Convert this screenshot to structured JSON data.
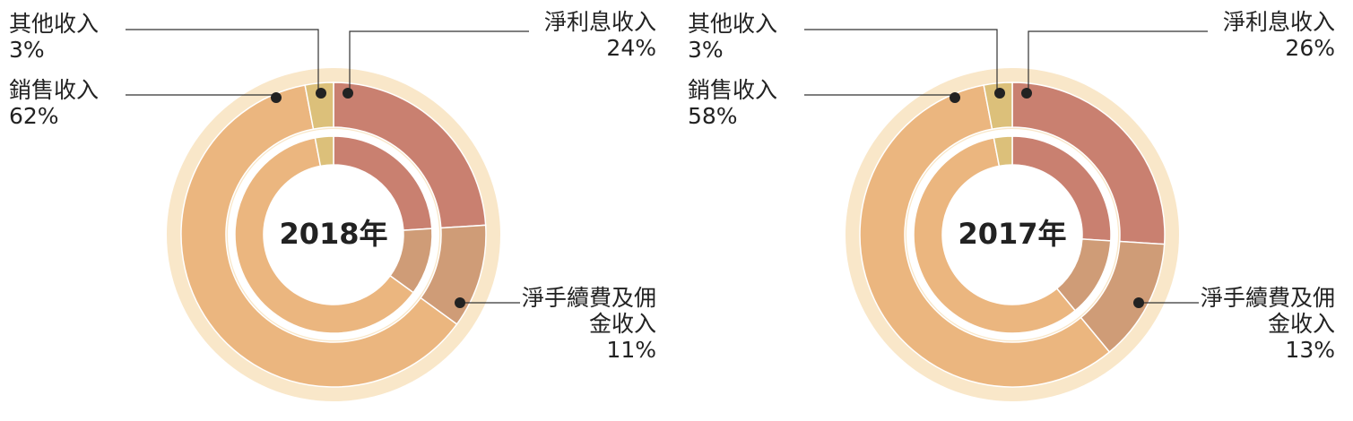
{
  "chart_data": [
    {
      "type": "pie",
      "title": "2018年",
      "categories": [
        "淨利息收入",
        "淨手續費及佣金收入",
        "銷售收入",
        "其他收入"
      ],
      "values": [
        24,
        11,
        62,
        3
      ],
      "value_labels": [
        "24%",
        "11%",
        "62%",
        "3%"
      ],
      "colors": [
        "#c98070",
        "#cf9c77",
        "#ebb67f",
        "#dcc07a"
      ]
    },
    {
      "type": "pie",
      "title": "2017年",
      "categories": [
        "淨利息收入",
        "淨手續費及佣金收入",
        "銷售收入",
        "其他收入"
      ],
      "values": [
        26,
        13,
        58,
        3
      ],
      "value_labels": [
        "26%",
        "13%",
        "58%",
        "3%"
      ],
      "colors": [
        "#c98070",
        "#cf9c77",
        "#ebb67f",
        "#dcc07a"
      ]
    }
  ]
}
